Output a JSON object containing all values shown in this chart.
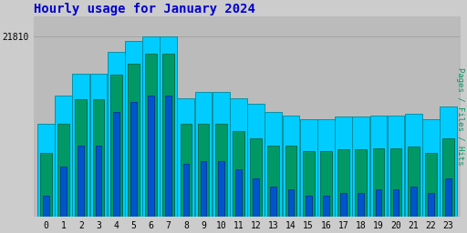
{
  "title": "Hourly usage for January 2024",
  "title_color": "#0000cc",
  "title_fontsize": 10,
  "hours": [
    0,
    1,
    2,
    3,
    4,
    5,
    6,
    7,
    8,
    9,
    10,
    11,
    12,
    13,
    14,
    15,
    16,
    17,
    18,
    19,
    20,
    21,
    22,
    23
  ],
  "hits": [
    21200,
    21400,
    21550,
    21550,
    21700,
    21780,
    21810,
    21810,
    21380,
    21420,
    21420,
    21380,
    21340,
    21280,
    21260,
    21230,
    21230,
    21250,
    21250,
    21260,
    21260,
    21270,
    21230,
    21320
  ],
  "files": [
    21000,
    21200,
    21370,
    21370,
    21540,
    21620,
    21690,
    21690,
    21200,
    21200,
    21200,
    21150,
    21100,
    21050,
    21050,
    21010,
    21010,
    21020,
    21020,
    21030,
    21030,
    21040,
    21000,
    21100
  ],
  "pages": [
    20700,
    20900,
    21050,
    21050,
    21280,
    21350,
    21400,
    21400,
    20920,
    20940,
    20940,
    20880,
    20820,
    20760,
    20740,
    20700,
    20700,
    20720,
    20720,
    20740,
    20740,
    20760,
    20720,
    20820
  ],
  "hits_color": "#00ccff",
  "files_color": "#009966",
  "pages_color": "#0055cc",
  "hits_edge": "#008899",
  "files_edge": "#006644",
  "pages_edge": "#003399",
  "bg_color": "#cccccc",
  "plot_bg_color": "#bbbbbb",
  "ylabel_right": "Pages / Files / Hits",
  "ylabel_right_color": "#009966",
  "ytick_label": "21810",
  "ytick_value": 21810,
  "bar_width": 0.35,
  "ylim_min": 20550,
  "ylim_max": 21950,
  "tick_fontsize": 7,
  "xtick_fontsize": 7,
  "grid_color": "#999999",
  "grid_y_values": [
    21810
  ]
}
